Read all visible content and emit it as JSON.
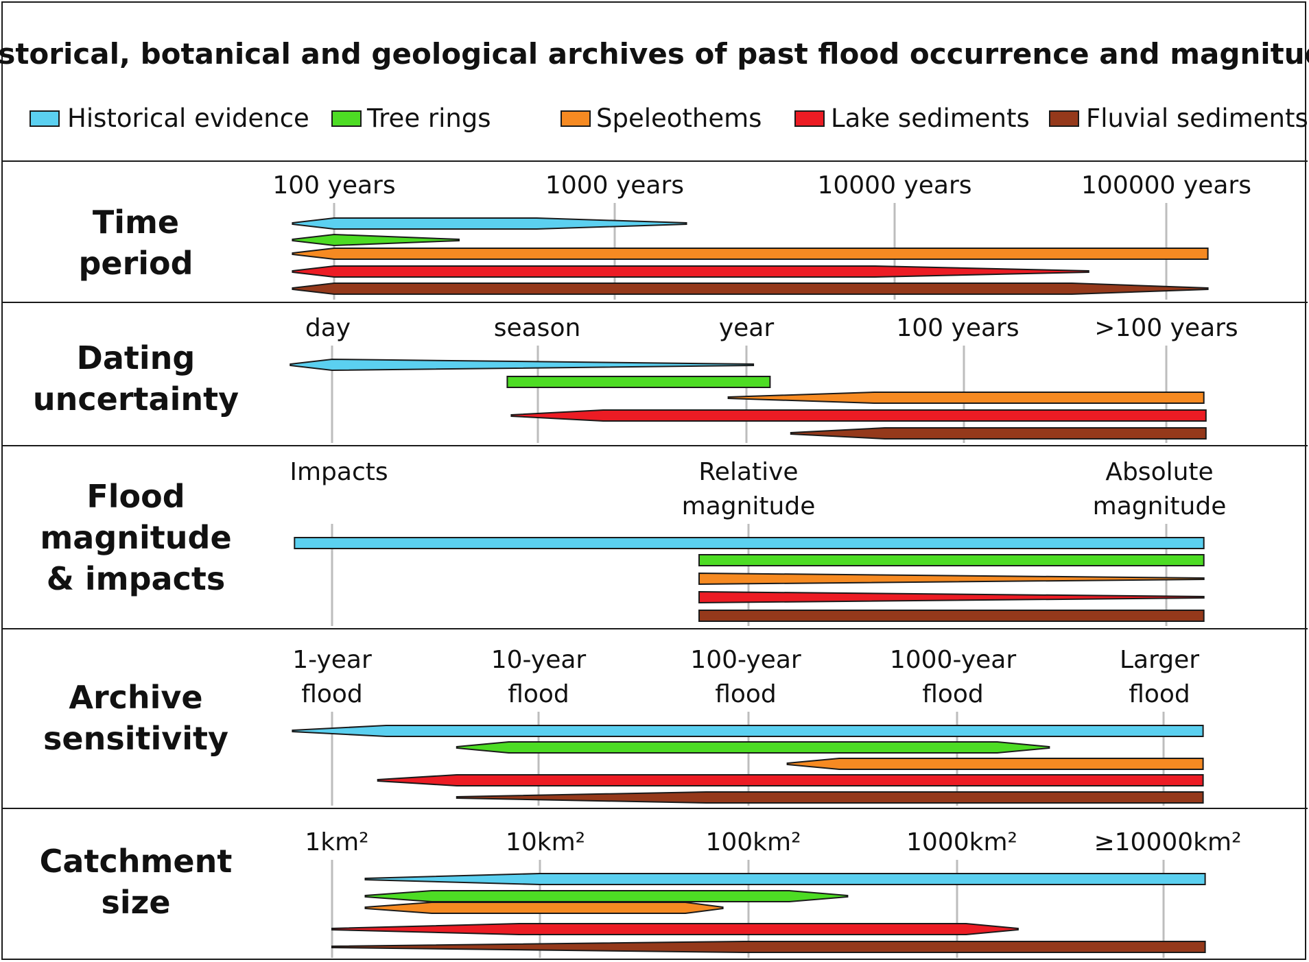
{
  "title": "Historical, botanical and geological archives of past flood occurrence and magnitude",
  "colors": {
    "historical": "#5bd0f0",
    "tree": "#4ddc24",
    "speleo": "#f68a22",
    "lake": "#ec1c24",
    "fluvial": "#95391b"
  },
  "legend": [
    {
      "key": "historical",
      "label": "Historical evidence"
    },
    {
      "key": "tree",
      "label": "Tree rings"
    },
    {
      "key": "speleo",
      "label": "Speleothems"
    },
    {
      "key": "lake",
      "label": "Lake sediments"
    },
    {
      "key": "fluvial",
      "label": "Fluvial sediments"
    }
  ],
  "panels": [
    {
      "label": [
        "Time",
        "period"
      ],
      "ticks": [
        [
          "100 years"
        ],
        [
          "1000 years"
        ],
        [
          "10000 years"
        ],
        [
          "100000 years"
        ]
      ],
      "bars": [
        {
          "key": "historical",
          "range": [
            -0.15,
            1.27
          ],
          "thick": [
            0.0,
            0.73
          ]
        },
        {
          "key": "tree",
          "range": [
            -0.15,
            0.45
          ],
          "thick": [
            0.0,
            0.0
          ]
        },
        {
          "key": "speleo",
          "range": [
            -0.15,
            3.15
          ],
          "thick": [
            0.0,
            3.15
          ]
        },
        {
          "key": "lake",
          "range": [
            -0.15,
            2.72
          ],
          "thick": [
            0.0,
            1.95
          ]
        },
        {
          "key": "fluvial",
          "range": [
            -0.15,
            3.15
          ],
          "thick": [
            0.0,
            2.66
          ]
        }
      ]
    },
    {
      "label": [
        "Dating",
        "uncertainty"
      ],
      "ticks": [
        [
          "day"
        ],
        [
          "season"
        ],
        [
          "year"
        ],
        [
          "100 years"
        ],
        [
          ">100 years"
        ]
      ],
      "bars": [
        {
          "key": "historical",
          "range": [
            -0.2,
            2.02
          ],
          "thick": [
            0.0,
            0.0
          ]
        },
        {
          "key": "tree",
          "range": [
            0.84,
            2.1
          ],
          "thick": [
            0.84,
            2.1
          ]
        },
        {
          "key": "speleo",
          "range": [
            1.9,
            4.18
          ],
          "thick": [
            2.6,
            4.18
          ]
        },
        {
          "key": "lake",
          "range": [
            0.86,
            4.19
          ],
          "thick": [
            1.3,
            4.19
          ]
        },
        {
          "key": "fluvial",
          "range": [
            2.2,
            4.19
          ],
          "thick": [
            2.65,
            4.19
          ]
        }
      ]
    },
    {
      "label": [
        "Flood",
        "magnitude",
        "& impacts"
      ],
      "ticks": [
        [
          "Impacts"
        ],
        [
          "Relative",
          "magnitude"
        ],
        [
          "Absolute",
          "magnitude"
        ]
      ],
      "bars": [
        {
          "key": "historical",
          "range": [
            -0.09,
            2.09
          ],
          "thick": [
            -0.09,
            2.09
          ]
        },
        {
          "key": "tree",
          "range": [
            0.88,
            2.09
          ],
          "thick": [
            0.88,
            2.09
          ]
        },
        {
          "key": "speleo",
          "range": [
            0.88,
            2.09
          ],
          "thick": [
            0.88,
            0.88
          ]
        },
        {
          "key": "lake",
          "range": [
            0.88,
            2.09
          ],
          "thick": [
            0.88,
            0.88
          ]
        },
        {
          "key": "fluvial",
          "range": [
            0.88,
            2.09
          ],
          "thick": [
            0.88,
            2.09
          ]
        }
      ]
    },
    {
      "label": [
        "Archive",
        "sensitivity"
      ],
      "ticks": [
        [
          "1-year",
          "flood"
        ],
        [
          "10-year",
          "flood"
        ],
        [
          "100-year",
          "flood"
        ],
        [
          "1000-year",
          "flood"
        ],
        [
          "Larger",
          "flood"
        ]
      ],
      "bars": [
        {
          "key": "historical",
          "range": [
            -0.19,
            4.19
          ],
          "thick": [
            0.26,
            4.19
          ]
        },
        {
          "key": "tree",
          "range": [
            0.6,
            3.45
          ],
          "thick": [
            0.85,
            3.2
          ]
        },
        {
          "key": "speleo",
          "range": [
            2.19,
            4.19
          ],
          "thick": [
            2.44,
            4.19
          ]
        },
        {
          "key": "lake",
          "range": [
            0.22,
            4.19
          ],
          "thick": [
            0.6,
            4.19
          ]
        },
        {
          "key": "fluvial",
          "range": [
            0.6,
            4.19
          ],
          "thick": [
            1.8,
            4.19
          ]
        }
      ]
    },
    {
      "label": [
        "Catchment",
        "size"
      ],
      "ticks": [
        [
          "1km²"
        ],
        [
          "10km²"
        ],
        [
          "100km²"
        ],
        [
          "1000km²"
        ],
        [
          "≥10000km²"
        ]
      ],
      "bars": [
        {
          "key": "historical",
          "range": [
            0.16,
            4.2
          ],
          "thick": [
            1.0,
            4.2
          ]
        },
        {
          "key": "tree",
          "range": [
            0.16,
            2.48
          ],
          "thick": [
            0.48,
            2.2
          ]
        },
        {
          "key": "speleo",
          "range": [
            0.16,
            1.88
          ],
          "thick": [
            0.48,
            1.7
          ]
        },
        {
          "key": "lake",
          "range": [
            0.0,
            3.3
          ],
          "thick": [
            0.9,
            3.05
          ]
        },
        {
          "key": "fluvial",
          "range": [
            0.0,
            4.2
          ],
          "thick": [
            1.98,
            4.2
          ]
        }
      ]
    }
  ]
}
